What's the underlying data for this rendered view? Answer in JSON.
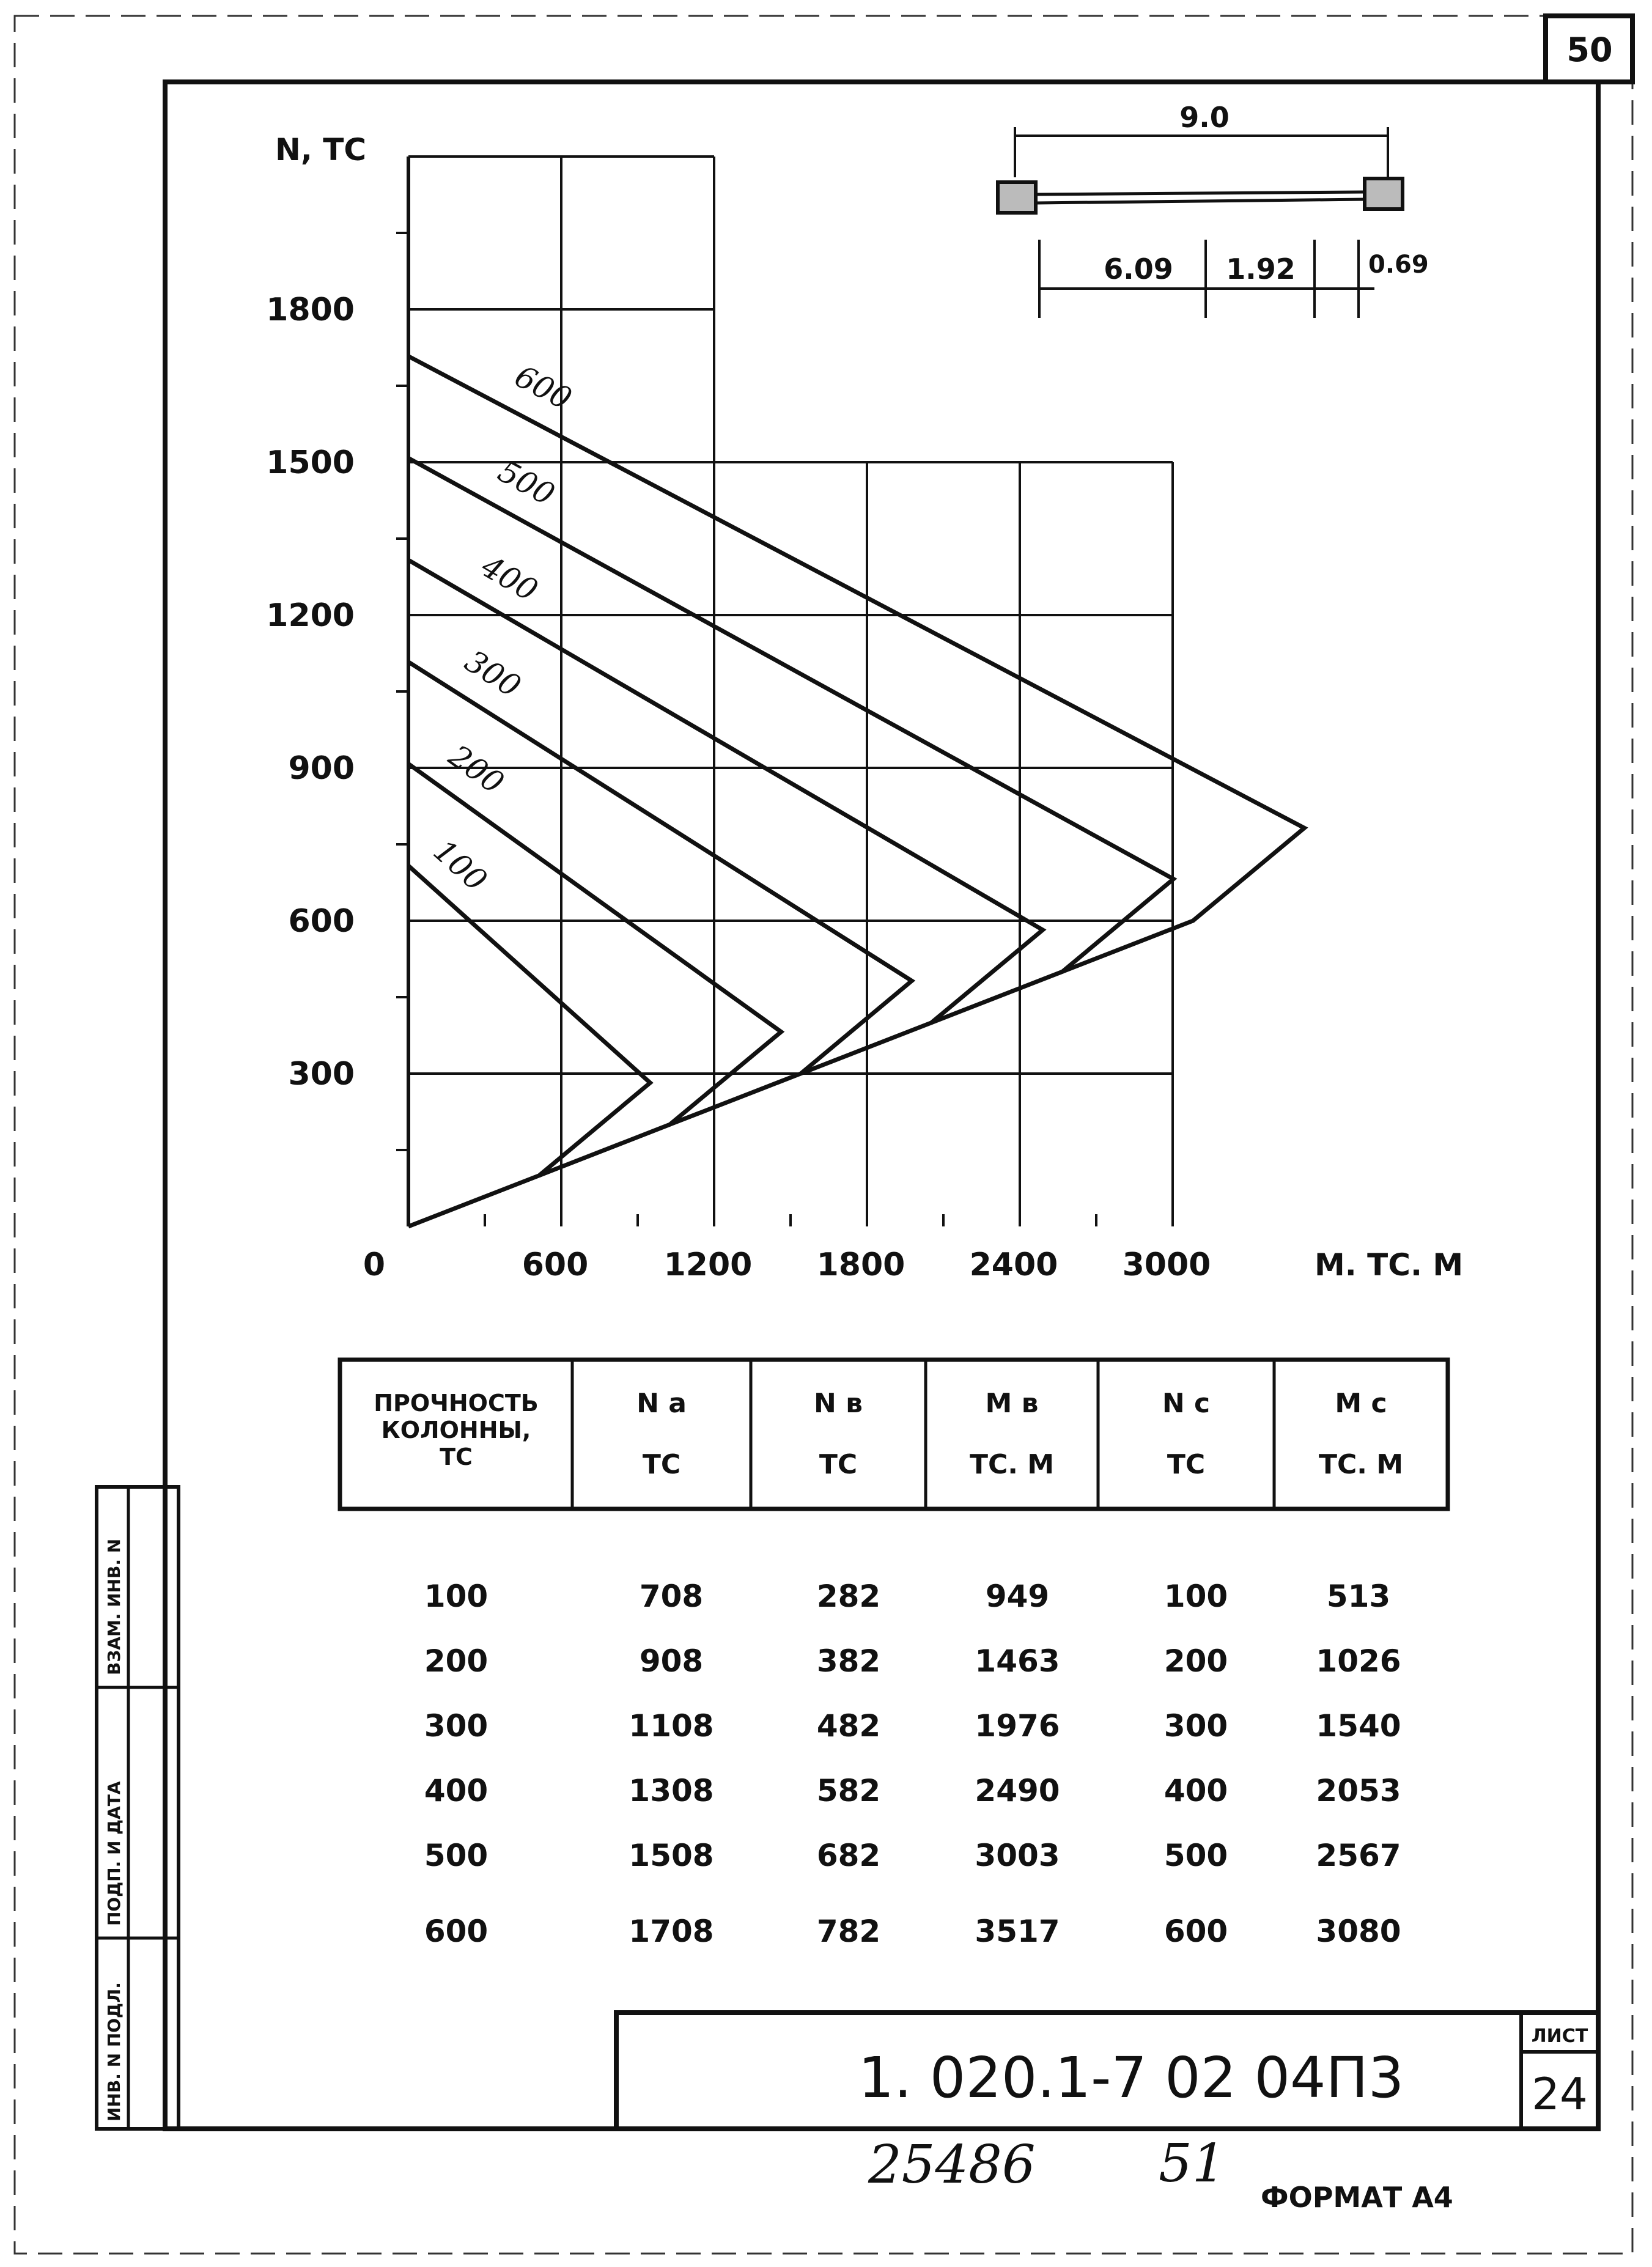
{
  "sheet": {
    "corner_number": "50",
    "document_code": "1. 020.1-7   02  04П3",
    "list_label": "ЛИСТ",
    "list_number": "24",
    "handwritten_a": "25486",
    "handwritten_b": "51",
    "format_label": "ФОРМАТ А4",
    "side_labels": [
      "ИНВ. N ПОДЛ.",
      "ПОДП. И ДАТА",
      "ВЗАМ. ИНВ. N"
    ]
  },
  "beam_sketch": {
    "span": "9.0",
    "segments": [
      "6.09",
      "1.92",
      "0.69"
    ]
  },
  "chart_data": {
    "type": "line",
    "ylabel": "N, ТС",
    "xlabel": "M. ТС. М",
    "x_ticks": [
      0,
      600,
      1200,
      1800,
      2400,
      3000
    ],
    "x_tick_labels": [
      "0",
      "600",
      "1200",
      "1800",
      "2400",
      "3000"
    ],
    "y_ticks": [
      300,
      600,
      900,
      1200,
      1500,
      1800
    ],
    "y_tick_labels": [
      "300",
      "600",
      "900",
      "1200",
      "1500",
      "1800"
    ],
    "xlim": [
      0,
      3500
    ],
    "ylim": [
      0,
      2100
    ],
    "grid": true,
    "series": [
      {
        "name": "100",
        "points": [
          [
            0,
            708
          ],
          [
            949,
            282
          ],
          [
            513,
            100
          ],
          [
            0,
            0
          ]
        ]
      },
      {
        "name": "200",
        "points": [
          [
            0,
            908
          ],
          [
            1463,
            382
          ],
          [
            1026,
            200
          ],
          [
            513,
            100
          ]
        ]
      },
      {
        "name": "300",
        "points": [
          [
            0,
            1108
          ],
          [
            1976,
            482
          ],
          [
            1540,
            300
          ],
          [
            1026,
            200
          ]
        ]
      },
      {
        "name": "400",
        "points": [
          [
            0,
            1308
          ],
          [
            2490,
            582
          ],
          [
            2053,
            400
          ],
          [
            1540,
            300
          ]
        ]
      },
      {
        "name": "500",
        "points": [
          [
            0,
            1508
          ],
          [
            3003,
            682
          ],
          [
            2567,
            500
          ],
          [
            2053,
            400
          ]
        ]
      },
      {
        "name": "600",
        "points": [
          [
            0,
            1708
          ],
          [
            3517,
            782
          ],
          [
            3080,
            600
          ],
          [
            2567,
            500
          ]
        ]
      }
    ]
  },
  "table": {
    "headers": [
      [
        "ПРОЧНОСТЬ",
        "КОЛОННЫ,",
        "ТС"
      ],
      [
        "N a",
        "ТС"
      ],
      [
        "N в",
        "ТС"
      ],
      [
        "M в",
        "ТС. М"
      ],
      [
        "N c",
        "ТС"
      ],
      [
        "M c",
        "ТС. М"
      ]
    ],
    "rows": [
      [
        "100",
        "708",
        "282",
        "949",
        "100",
        "513"
      ],
      [
        "200",
        "908",
        "382",
        "1463",
        "200",
        "1026"
      ],
      [
        "300",
        "1108",
        "482",
        "1976",
        "300",
        "1540"
      ],
      [
        "400",
        "1308",
        "582",
        "2490",
        "400",
        "2053"
      ],
      [
        "500",
        "1508",
        "682",
        "3003",
        "500",
        "2567"
      ],
      [
        "600",
        "1708",
        "782",
        "3517",
        "600",
        "3080"
      ]
    ]
  }
}
